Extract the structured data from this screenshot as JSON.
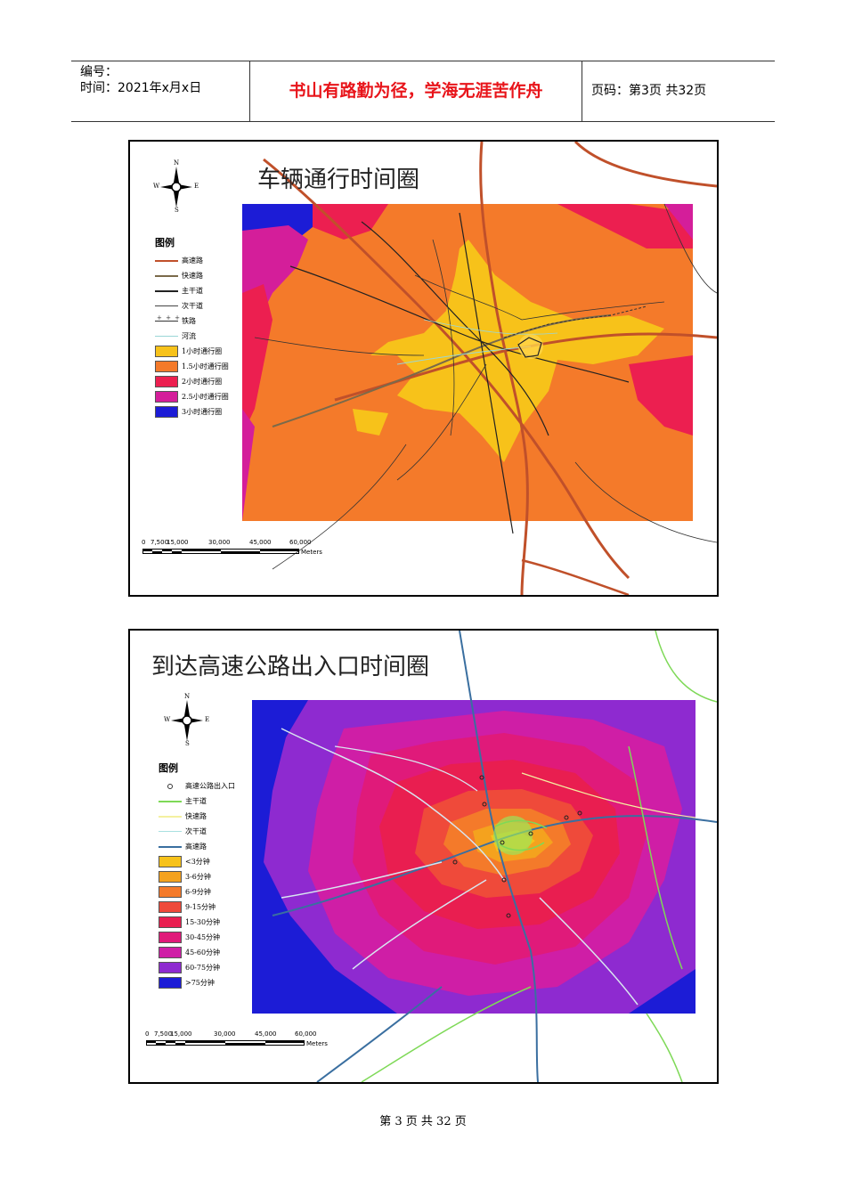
{
  "header": {
    "number_label": "编号：",
    "date_label": "时间：2021年x月x日",
    "motto": "书山有路勤为径，学海无涯苦作舟",
    "page_info": "页码：第3页  共32页"
  },
  "map1": {
    "title": "车辆通行时间圈",
    "legend_title": "图例",
    "legend": [
      {
        "label": "高速路",
        "kind": "line",
        "color": "#c0502a"
      },
      {
        "label": "快速路",
        "kind": "line",
        "color": "#7a6a4a"
      },
      {
        "label": "主干道",
        "kind": "line",
        "color": "#222222"
      },
      {
        "label": "次干道",
        "kind": "thin",
        "color": "#444444"
      },
      {
        "label": "铁路",
        "kind": "rail",
        "color": "#333333"
      },
      {
        "label": "河流",
        "kind": "thin",
        "color": "#9ad6d6"
      },
      {
        "label": "1小时通行圈",
        "kind": "fill",
        "color": "#f7c21a"
      },
      {
        "label": "1.5小时通行圈",
        "kind": "fill",
        "color": "#f47a2a"
      },
      {
        "label": "2小时通行圈",
        "kind": "fill",
        "color": "#ec1f50"
      },
      {
        "label": "2.5小时通行圈",
        "kind": "fill",
        "color": "#d41e9a"
      },
      {
        "label": "3小时通行圈",
        "kind": "fill",
        "color": "#1c1cd6"
      }
    ],
    "compass": {
      "n": "N",
      "s": "S",
      "e": "E",
      "w": "W"
    },
    "scale": {
      "ticks": [
        "0",
        "7,500",
        "15,000",
        "30,000",
        "45,000",
        "60,000"
      ],
      "unit": "Meters"
    }
  },
  "map2": {
    "title": "到达高速公路出入口时间圈",
    "legend_title": "图例",
    "legend": [
      {
        "label": "高速公路出入口",
        "kind": "dot",
        "color": "#333333"
      },
      {
        "label": "主干道",
        "kind": "line",
        "color": "#7ed957"
      },
      {
        "label": "快速路",
        "kind": "line",
        "color": "#f4f0a0"
      },
      {
        "label": "次干道",
        "kind": "thin",
        "color": "#a8e0e0"
      },
      {
        "label": "高速路",
        "kind": "line",
        "color": "#3a6fa0"
      },
      {
        "label": "<3分钟",
        "kind": "fill",
        "color": "#f7c21a"
      },
      {
        "label": "3-6分钟",
        "kind": "fill",
        "color": "#f4a21e"
      },
      {
        "label": "6-9分钟",
        "kind": "fill",
        "color": "#f47a2a"
      },
      {
        "label": "9-15分钟",
        "kind": "fill",
        "color": "#ef4a3a"
      },
      {
        "label": "15-30分钟",
        "kind": "fill",
        "color": "#e91e50"
      },
      {
        "label": "30-45分钟",
        "kind": "fill",
        "color": "#e01a7a"
      },
      {
        "label": "45-60分钟",
        "kind": "fill",
        "color": "#cf1ea6"
      },
      {
        "label": "60-75分钟",
        "kind": "fill",
        "color": "#8e2ad0"
      },
      {
        "label": ">75分钟",
        "kind": "fill",
        "color": "#1c1cd6"
      }
    ],
    "compass": {
      "n": "N",
      "s": "S",
      "e": "E",
      "w": "W"
    },
    "scale": {
      "ticks": [
        "0",
        "7,500",
        "15,000",
        "30,000",
        "45,000",
        "60,000"
      ],
      "unit": "Meters"
    }
  },
  "footer": "第 3 页 共 32 页"
}
